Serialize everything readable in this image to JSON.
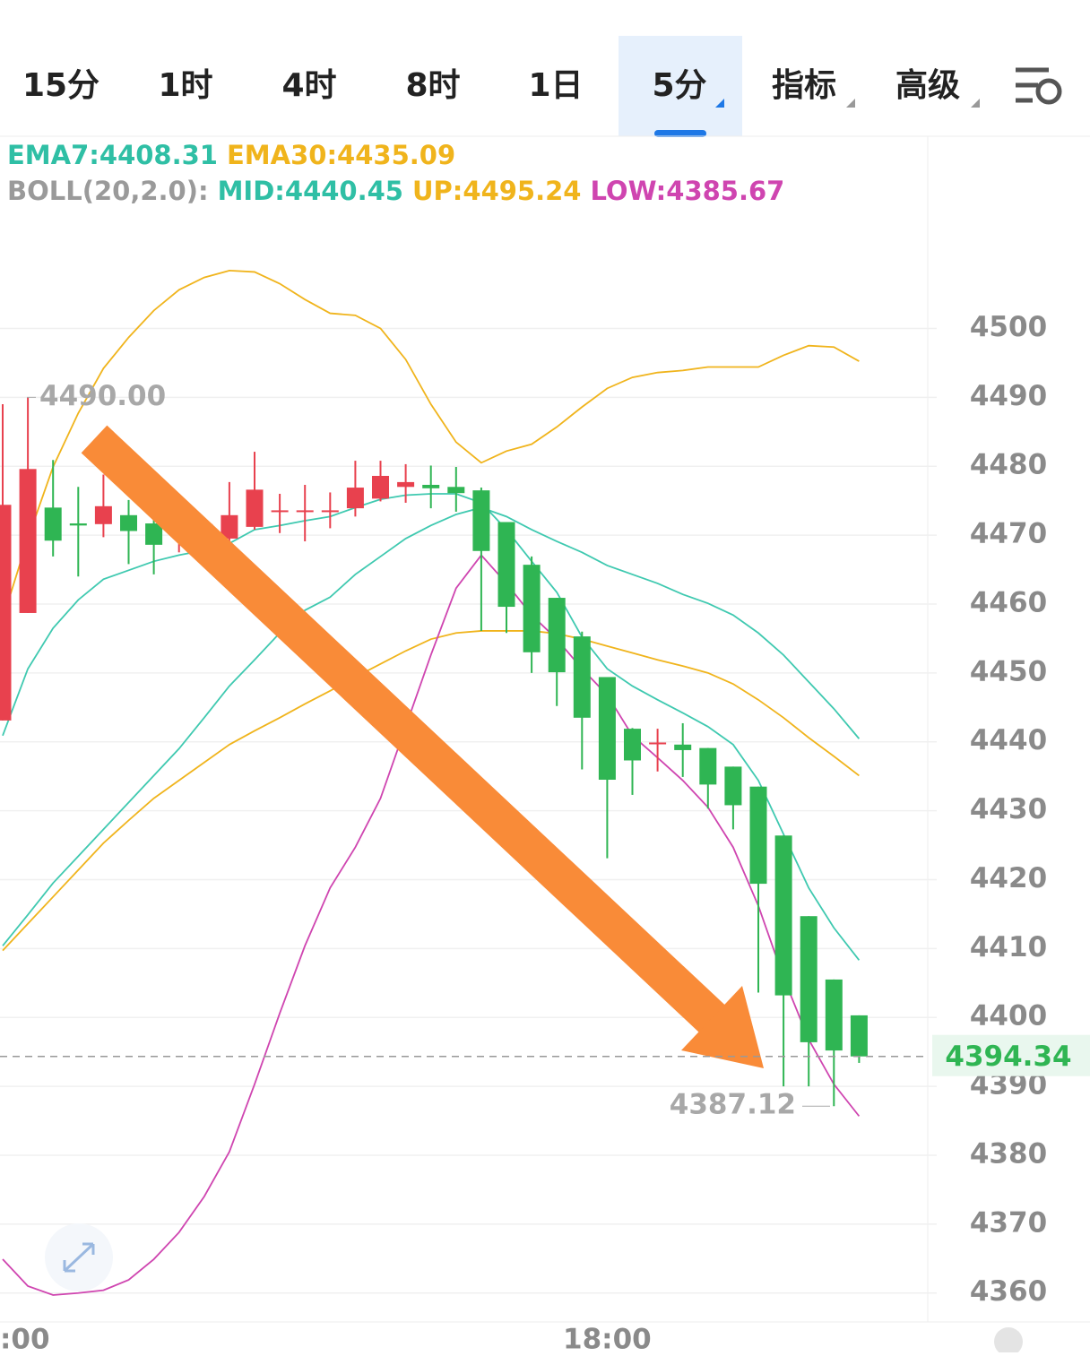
{
  "tabs": [
    "15分",
    "1时",
    "4时",
    "8时",
    "1日",
    "5分",
    "指标",
    "高级"
  ],
  "indicators": {
    "ema": [
      "EMA7:4408.31",
      "EMA30:4435.09"
    ],
    "boll": [
      "BOLL(20,2.0):",
      "MID:4440.45",
      "UP:4495.24",
      "LOW:4385.67"
    ]
  },
  "chart_data": {
    "type": "candlestick",
    "categories": [
      ":00",
      null,
      null,
      null,
      null,
      null,
      null,
      null,
      null,
      null,
      null,
      null,
      null,
      null,
      null,
      null,
      null,
      null,
      null,
      null,
      null,
      null,
      null,
      null,
      "18:00",
      null,
      null,
      null,
      null,
      null,
      null,
      null,
      null,
      null,
      null
    ],
    "open": [
      4443.1,
      4458.7,
      4474.0,
      4471.7,
      4471.6,
      4472.9,
      4471.7,
      4471.2,
      4470.8,
      4469.5,
      4471.2,
      4473.5,
      4473.5,
      4473.5,
      4473.9,
      4475.3,
      4477.0,
      4477.3,
      4477.0,
      4476.5,
      4471.9,
      4465.7,
      4460.9,
      4455.3,
      4449.4,
      4441.9,
      4439.8,
      4439.6,
      4439.1,
      4436.4,
      4433.5,
      4426.4,
      4414.7,
      4405.5,
      4400.3
    ],
    "high": [
      4489.0,
      4490.0,
      4480.9,
      4477.0,
      4478.8,
      4475.1,
      4473.4,
      4472.3,
      4472.1,
      4477.7,
      4482.1,
      4476.0,
      4477.3,
      4476.2,
      4480.8,
      4480.8,
      4480.3,
      4480.1,
      4479.9,
      4476.9,
      4471.9,
      4466.9,
      4460.9,
      4456.0,
      4449.4,
      4442.0,
      4441.9,
      4442.7,
      4439.1,
      4436.4,
      4433.5,
      4426.4,
      4414.7,
      4405.5,
      4400.3
    ],
    "low": [
      4443.1,
      4458.7,
      4466.9,
      4464.0,
      4469.7,
      4465.8,
      4464.3,
      4467.5,
      4465.8,
      4468.2,
      4470.8,
      4470.3,
      4469.1,
      4471.0,
      4472.7,
      4474.9,
      4474.7,
      4473.9,
      4473.4,
      4456.1,
      4455.8,
      4450.0,
      4445.2,
      4436.0,
      4423.1,
      4432.3,
      4435.7,
      4434.9,
      4430.3,
      4427.3,
      4403.6,
      4390.0,
      4390.0,
      4387.12,
      4393.4
    ],
    "close": [
      4474.4,
      4479.6,
      4469.2,
      4471.4,
      4474.2,
      4470.6,
      4468.6,
      4471.7,
      4471.6,
      4472.9,
      4476.6,
      4473.6,
      4473.6,
      4473.6,
      4476.9,
      4478.6,
      4477.7,
      4476.8,
      4476.1,
      4467.7,
      4459.6,
      4453.0,
      4450.1,
      4443.5,
      4434.5,
      4437.3,
      4439.9,
      4438.8,
      4433.8,
      4430.8,
      4419.4,
      4403.2,
      4396.4,
      4395.2,
      4394.34
    ],
    "up_color": "#e8414e",
    "down_color": "#2fb553",
    "lines": [
      {
        "color": "#3fc9b0",
        "values": [
          4440.9,
          4450.6,
          4456.5,
          4460.6,
          4463.6,
          4464.9,
          4466.2,
          4467.1,
          4467.8,
          4468.8,
          4470.8,
          4471.4,
          4472.1,
          4472.7,
          4474.0,
          4475.2,
          4475.8,
          4476.0,
          4476.0,
          4474.7,
          4470.8,
          4466.2,
          4461.7,
          4455.2,
          4450.6,
          4448.1,
          4446.1,
          4444.2,
          4442.2,
          4439.6,
          4434.4,
          4426.6,
          4418.8,
          4413.0,
          4408.31
        ]
      },
      {
        "color": "#f0b41c",
        "values": [
          4409.7,
          4413.6,
          4417.5,
          4421.4,
          4425.3,
          4428.6,
          4431.8,
          4434.4,
          4437.0,
          4439.6,
          4441.6,
          4443.5,
          4445.5,
          4447.4,
          4449.4,
          4451.3,
          4453.2,
          4454.9,
          4455.8,
          4456.1,
          4456.1,
          4456.1,
          4455.7,
          4454.9,
          4453.9,
          4452.9,
          4451.9,
          4451.0,
          4450.0,
          4448.4,
          4446.1,
          4443.5,
          4440.6,
          4437.9,
          4435.09
        ]
      },
      {
        "color": "#3fc9b0",
        "values": [
          4410.4,
          4414.9,
          4419.5,
          4423.4,
          4427.3,
          4431.2,
          4435.1,
          4439.0,
          4443.5,
          4448.1,
          4451.9,
          4455.8,
          4459.1,
          4461.0,
          4464.3,
          4466.9,
          4469.5,
          4471.4,
          4473.0,
          4474.0,
          4472.7,
          4470.8,
          4469.1,
          4467.5,
          4465.6,
          4464.3,
          4463.0,
          4461.4,
          4460.1,
          4458.4,
          4455.8,
          4452.6,
          4448.7,
          4444.8,
          4440.45
        ]
      },
      {
        "color": "#f0b41c",
        "values": [
          4457.8,
          4469.5,
          4479.9,
          4487.7,
          4494.2,
          4498.7,
          4502.6,
          4505.6,
          4507.4,
          4508.4,
          4508.2,
          4506.5,
          4504.2,
          4502.2,
          4501.9,
          4500.0,
          4495.5,
          4489.0,
          4483.5,
          4480.5,
          4482.2,
          4483.2,
          4485.7,
          4488.6,
          4491.3,
          4492.9,
          4493.6,
          4493.9,
          4494.4,
          4494.4,
          4494.4,
          4496.1,
          4497.5,
          4497.3,
          4495.24
        ]
      },
      {
        "color": "#cf45b0",
        "values": [
          4364.9,
          4361.0,
          4359.7,
          4360.0,
          4360.4,
          4361.9,
          4364.9,
          4368.8,
          4374.0,
          4380.5,
          4390.3,
          4400.6,
          4410.4,
          4418.8,
          4424.7,
          4431.8,
          4442.2,
          4452.6,
          4462.3,
          4467.1,
          4463.0,
          4458.4,
          4454.9,
          4450.6,
          4446.8,
          4440.9,
          4437.7,
          4434.4,
          4430.5,
          4424.7,
          4416.2,
          4405.8,
          4396.8,
          4390.3,
          4385.67
        ]
      }
    ],
    "ylim": [
      4355.8,
      4527.9
    ],
    "yticks": [
      4360,
      4370,
      4380,
      4390,
      4400,
      4410,
      4420,
      4430,
      4440,
      4450,
      4460,
      4470,
      4480,
      4490,
      4500
    ],
    "grid": true,
    "last_price": 4394.34,
    "high_marker": {
      "value": 4490,
      "label": "4490.00"
    },
    "low_marker": 4387.12
  }
}
